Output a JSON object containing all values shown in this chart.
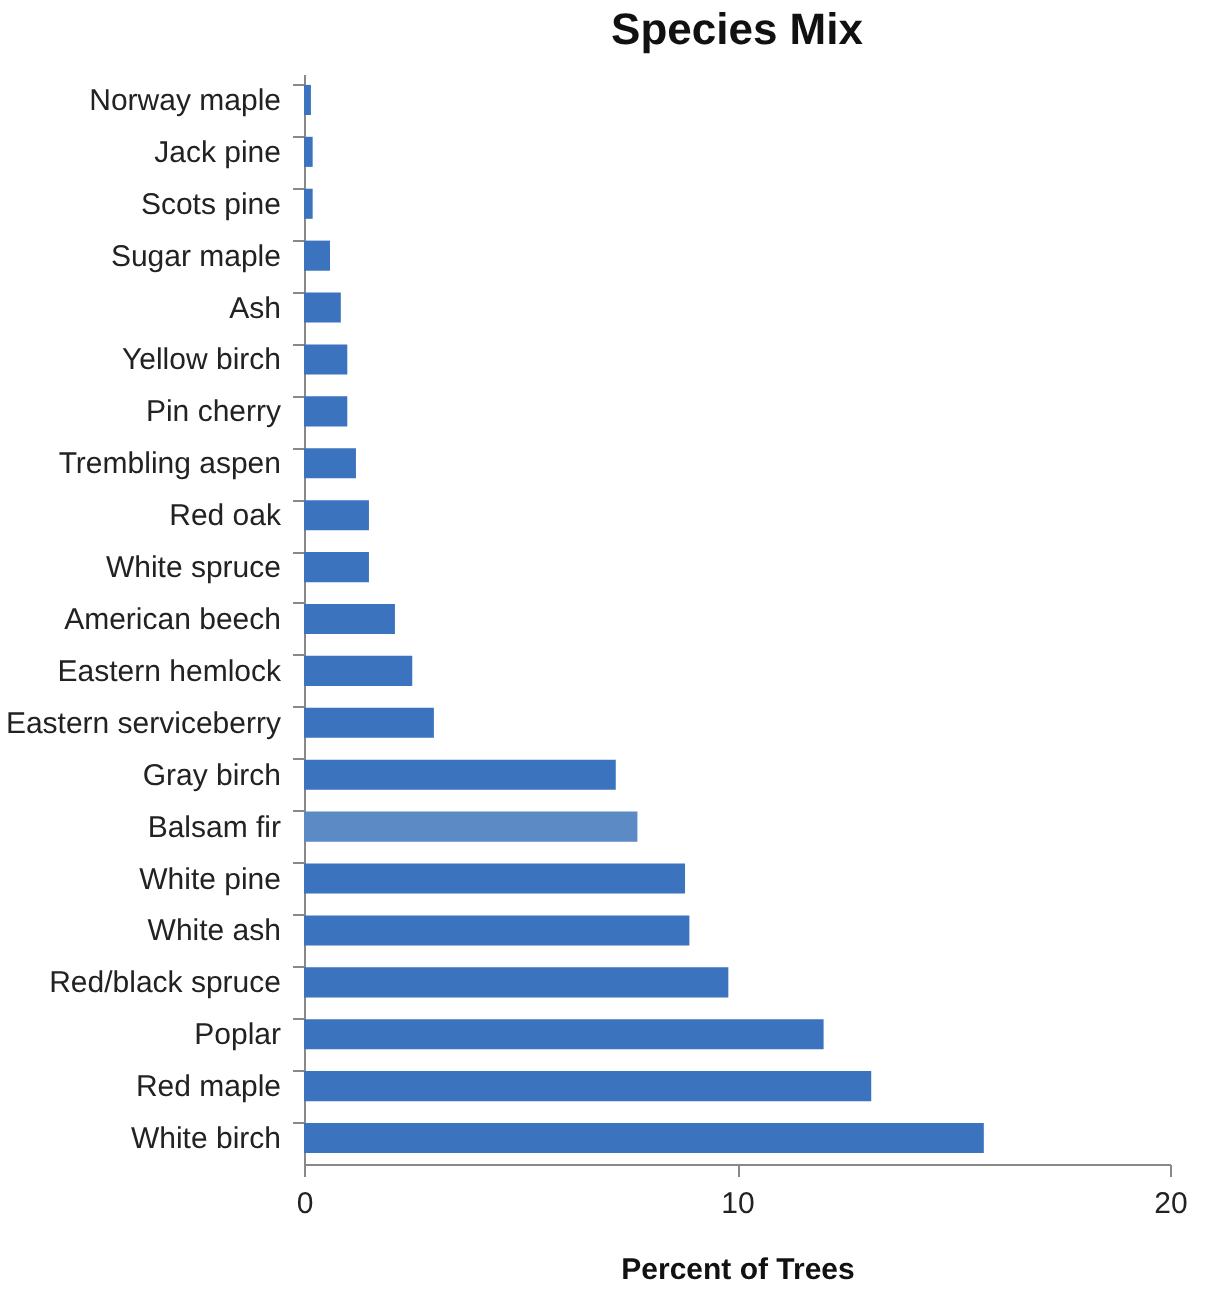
{
  "chart_data": {
    "type": "bar",
    "orientation": "horizontal",
    "title": "Species Mix",
    "xlabel": "Percent of Trees",
    "categories": [
      "Norway maple",
      "Jack pine",
      "Scots pine",
      "Sugar maple",
      "Ash",
      "Yellow birch",
      "Pin cherry",
      "Trembling aspen",
      "Red oak",
      "White spruce",
      "American beech",
      "Eastern hemlock",
      "Eastern serviceberry",
      "Gray birch",
      "Balsam fir",
      "White pine",
      "White ash",
      "Red/black spruce",
      "Poplar",
      "Red maple",
      "White birch"
    ],
    "values": [
      0.16,
      0.2,
      0.2,
      0.6,
      0.85,
      1.0,
      1.0,
      1.2,
      1.5,
      1.5,
      2.1,
      2.5,
      3.0,
      7.2,
      7.7,
      8.8,
      8.9,
      9.8,
      12.0,
      13.1,
      15.7
    ],
    "colors": [
      "#3b73bf",
      "#3b73bf",
      "#3b73bf",
      "#3b73bf",
      "#3b73bf",
      "#3b73bf",
      "#3b73bf",
      "#3b73bf",
      "#3b73bf",
      "#3b73bf",
      "#3b73bf",
      "#3b73bf",
      "#3b73bf",
      "#3b73bf",
      "#5b8ac4",
      "#3b73bf",
      "#3b73bf",
      "#3b73bf",
      "#3b73bf",
      "#3b73bf",
      "#3b73bf"
    ],
    "xlim": [
      0,
      20
    ],
    "xticks": [
      0,
      10,
      20
    ],
    "grid": false,
    "legend": false
  }
}
